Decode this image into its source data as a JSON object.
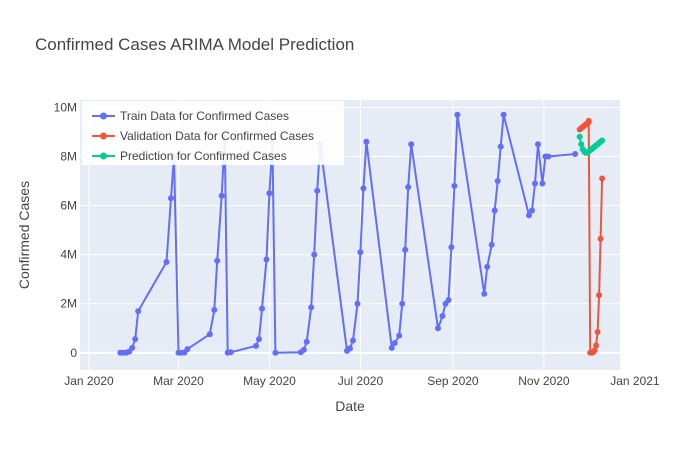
{
  "chart_data": {
    "type": "line",
    "title": "Confirmed Cases ARIMA Model Prediction",
    "xlabel": "Date",
    "ylabel": "Confirmed Cases",
    "x_type": "date",
    "xlim": [
      "2019-12-26",
      "2020-12-22"
    ],
    "ylim": [
      -700000,
      10300000
    ],
    "x_ticks": [
      {
        "value": "2020-01-01",
        "label": "Jan 2020"
      },
      {
        "value": "2020-03-01",
        "label": "Mar 2020"
      },
      {
        "value": "2020-05-01",
        "label": "May 2020"
      },
      {
        "value": "2020-07-01",
        "label": "Jul 2020"
      },
      {
        "value": "2020-09-01",
        "label": "Sep 2020"
      },
      {
        "value": "2020-11-01",
        "label": "Nov 2020"
      },
      {
        "value": "2021-01-01",
        "label": "Jan 2021"
      }
    ],
    "y_ticks": [
      {
        "value": 0,
        "label": "0"
      },
      {
        "value": 2000000,
        "label": "2M"
      },
      {
        "value": 4000000,
        "label": "4M"
      },
      {
        "value": 6000000,
        "label": "6M"
      },
      {
        "value": 8000000,
        "label": "8M"
      },
      {
        "value": 10000000,
        "label": "10M"
      }
    ],
    "grid": true,
    "legend_position": "top-left",
    "series": [
      {
        "name": "Train Data for Confirmed Cases",
        "color": "#636efa",
        "x": [
          "2020-01-22",
          "2020-01-24",
          "2020-01-26",
          "2020-01-28",
          "2020-01-30",
          "2020-02-01",
          "2020-02-03",
          "2020-02-22",
          "2020-02-25",
          "2020-02-27",
          "2020-03-01",
          "2020-03-03",
          "2020-03-05",
          "2020-03-07",
          "2020-03-22",
          "2020-03-25",
          "2020-03-27",
          "2020-03-30",
          "2020-04-01",
          "2020-04-03",
          "2020-04-05",
          "2020-04-22",
          "2020-04-24",
          "2020-04-26",
          "2020-04-29",
          "2020-05-01",
          "2020-05-03",
          "2020-05-05",
          "2020-05-22",
          "2020-05-24",
          "2020-05-26",
          "2020-05-29",
          "2020-05-31",
          "2020-06-02",
          "2020-06-04",
          "2020-06-22",
          "2020-06-24",
          "2020-06-26",
          "2020-06-29",
          "2020-07-01",
          "2020-07-03",
          "2020-07-05",
          "2020-07-22",
          "2020-07-24",
          "2020-07-27",
          "2020-07-29",
          "2020-07-31",
          "2020-08-02",
          "2020-08-04",
          "2020-08-22",
          "2020-08-25",
          "2020-08-27",
          "2020-08-29",
          "2020-08-31",
          "2020-09-02",
          "2020-09-04",
          "2020-09-22",
          "2020-09-24",
          "2020-09-27",
          "2020-09-29",
          "2020-10-01",
          "2020-10-03",
          "2020-10-05",
          "2020-10-22",
          "2020-10-24",
          "2020-10-26",
          "2020-10-28",
          "2020-10-31",
          "2020-11-02",
          "2020-11-04",
          "2020-11-22"
        ],
        "y": [
          0,
          0,
          10000,
          50000,
          200000,
          560000,
          1700000,
          3700000,
          6300000,
          8000000,
          0,
          0,
          10000,
          150000,
          760000,
          1750000,
          3750000,
          6400000,
          8800000,
          0,
          20000,
          280000,
          560000,
          1800000,
          3800000,
          6500000,
          8600000,
          0,
          20000,
          120000,
          450000,
          1850000,
          4000000,
          6600000,
          8500000,
          80000,
          180000,
          500000,
          2000000,
          4100000,
          6700000,
          8600000,
          200000,
          400000,
          700000,
          2000000,
          4200000,
          6750000,
          8500000,
          1000000,
          1500000,
          2000000,
          2150000,
          4300000,
          6800000,
          9700000,
          2400000,
          3500000,
          4400000,
          5800000,
          7000000,
          8400000,
          9700000,
          5600000,
          5800000,
          6900000,
          8500000,
          6900000,
          8000000,
          8000000,
          8100000
        ]
      },
      {
        "name": "Validation Data for Confirmed Cases",
        "color": "#ef553b",
        "x": [
          "2020-11-25",
          "2020-11-26",
          "2020-11-27",
          "2020-11-28",
          "2020-11-29",
          "2020-11-30",
          "2020-12-01",
          "2020-12-01",
          "2020-12-02",
          "2020-12-03",
          "2020-12-04",
          "2020-12-05",
          "2020-12-06",
          "2020-12-07",
          "2020-12-08",
          "2020-12-09",
          "2020-12-10"
        ],
        "y": [
          9100000,
          9150000,
          9200000,
          9250000,
          9300000,
          9350000,
          9400000,
          9450000,
          0,
          0,
          20000,
          100000,
          300000,
          850000,
          2350000,
          4650000,
          7100000
        ]
      },
      {
        "name": "Prediction for Confirmed Cases",
        "color": "#00cc96",
        "x": [
          "2020-11-25",
          "2020-11-26",
          "2020-11-27",
          "2020-11-28",
          "2020-11-29",
          "2020-11-30",
          "2020-12-01",
          "2020-12-02",
          "2020-12-03",
          "2020-12-04",
          "2020-12-05",
          "2020-12-06",
          "2020-12-07",
          "2020-12-08",
          "2020-12-09",
          "2020-12-10"
        ],
        "y": [
          8800000,
          8500000,
          8300000,
          8200000,
          8150000,
          8150000,
          8200000,
          8250000,
          8300000,
          8350000,
          8400000,
          8450000,
          8500000,
          8550000,
          8600000,
          8650000
        ]
      }
    ]
  }
}
